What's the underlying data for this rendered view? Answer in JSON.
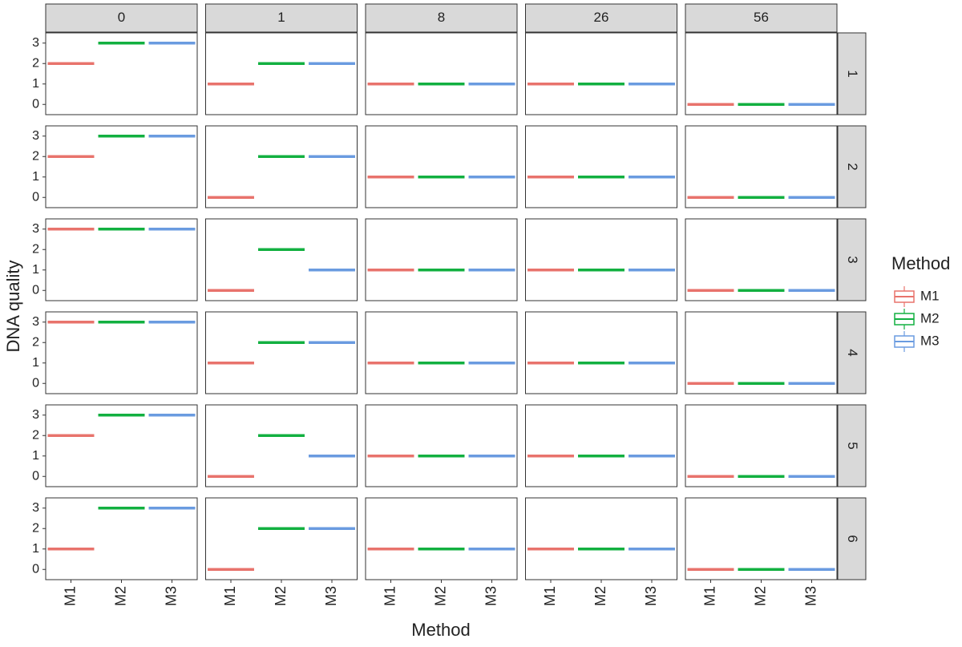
{
  "chart_data": {
    "type": "box",
    "x_label": "Method",
    "y_label": "DNA quality",
    "legend_title": "Method",
    "col_facets": [
      "0",
      "1",
      "8",
      "26",
      "56"
    ],
    "row_facets": [
      "1",
      "2",
      "3",
      "4",
      "5",
      "6"
    ],
    "categories": [
      "M1",
      "M2",
      "M3"
    ],
    "ylim": [
      -0.5,
      3.5
    ],
    "yticks": [
      0,
      1,
      2,
      3
    ],
    "grid": false,
    "legend_position": "right",
    "series": [
      {
        "name": "M1",
        "color": "#e8736c",
        "values": [
          [
            2,
            1,
            1,
            1,
            0
          ],
          [
            2,
            0,
            1,
            1,
            0
          ],
          [
            3,
            0,
            1,
            1,
            0
          ],
          [
            3,
            1,
            1,
            1,
            0
          ],
          [
            2,
            0,
            1,
            1,
            0
          ],
          [
            1,
            0,
            1,
            1,
            0
          ]
        ]
      },
      {
        "name": "M2",
        "color": "#12b040",
        "values": [
          [
            3,
            2,
            1,
            1,
            0
          ],
          [
            3,
            2,
            1,
            1,
            0
          ],
          [
            3,
            2,
            1,
            1,
            0
          ],
          [
            3,
            2,
            1,
            1,
            0
          ],
          [
            3,
            2,
            1,
            1,
            0
          ],
          [
            3,
            2,
            1,
            1,
            0
          ]
        ]
      },
      {
        "name": "M3",
        "color": "#6a9be0",
        "values": [
          [
            3,
            2,
            1,
            1,
            0
          ],
          [
            3,
            2,
            1,
            1,
            0
          ],
          [
            3,
            1,
            1,
            1,
            0
          ],
          [
            3,
            2,
            1,
            1,
            0
          ],
          [
            3,
            1,
            1,
            1,
            0
          ],
          [
            3,
            2,
            1,
            1,
            0
          ]
        ]
      }
    ]
  }
}
